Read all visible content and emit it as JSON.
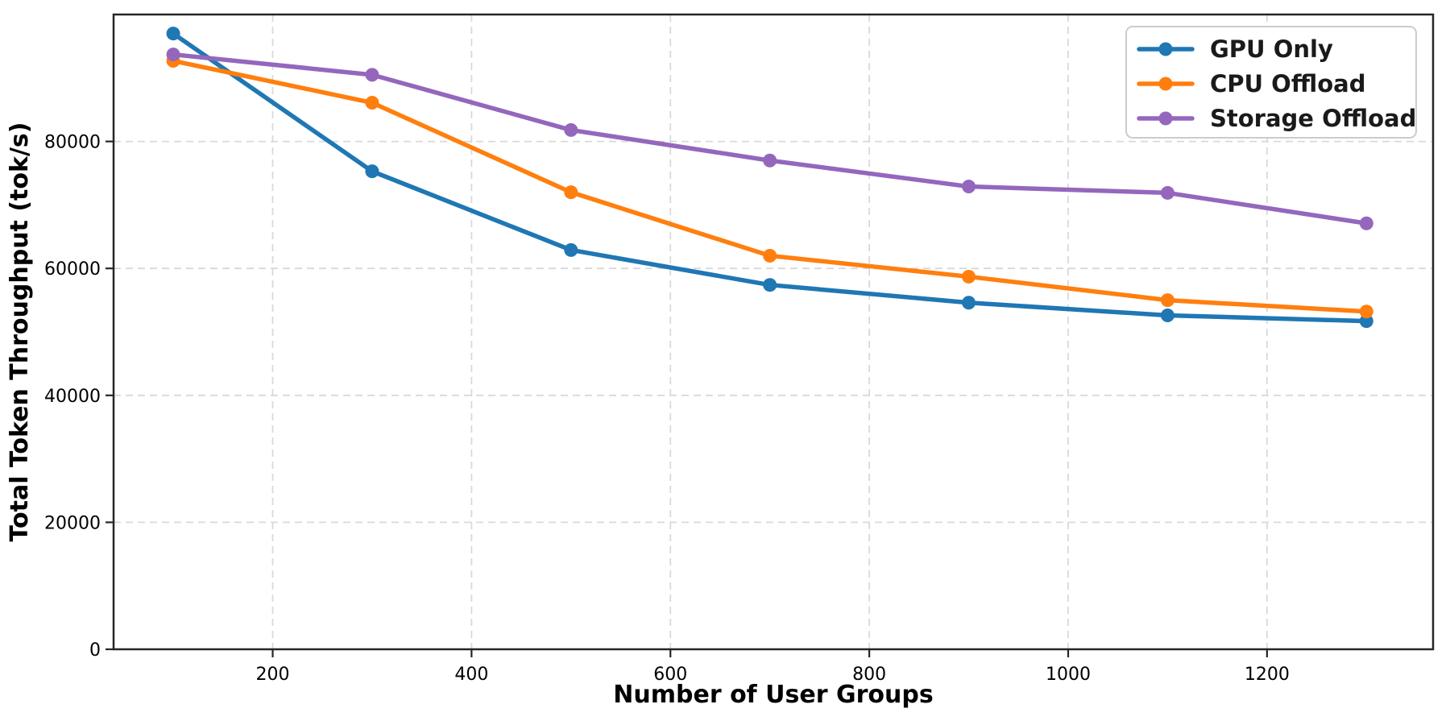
{
  "figure": {
    "background": "#ffffff"
  },
  "chart_data": {
    "type": "line",
    "title": "",
    "xlabel": "Number of User Groups",
    "ylabel": "Total Token Throughput (tok/s)",
    "x": [
      100,
      300,
      500,
      700,
      900,
      1100,
      1300
    ],
    "series": [
      {
        "name": "GPU Only",
        "color": "#1f77b4",
        "values": [
          97000,
          75300,
          62900,
          57400,
          54600,
          52600,
          51700
        ]
      },
      {
        "name": "CPU Offload",
        "color": "#ff7f0e",
        "values": [
          92700,
          86100,
          72000,
          62000,
          58700,
          55000,
          53200
        ]
      },
      {
        "name": "Storage Offload",
        "color": "#9467bd",
        "values": [
          93700,
          90500,
          81800,
          77000,
          72900,
          71900,
          67100
        ]
      }
    ],
    "xticks": [
      200,
      400,
      600,
      800,
      1000,
      1200
    ],
    "yticks": [
      0,
      20000,
      40000,
      60000,
      80000
    ],
    "xlim": [
      40,
      1367
    ],
    "ylim": [
      0,
      100000
    ],
    "grid": true,
    "grid_style": "dashed",
    "legend_position": "upper right",
    "legend_entries": [
      "GPU Only",
      "CPU Offload",
      "Storage Offload"
    ],
    "marker": "circle",
    "line_width": 5.5,
    "marker_size": 8.5
  },
  "style": {
    "grid_color": "#d9d9d9",
    "spine_color": "#262626",
    "tick_color": "#262626",
    "legend_border_color": "#cccccc",
    "legend_bg": "#ffffff"
  }
}
